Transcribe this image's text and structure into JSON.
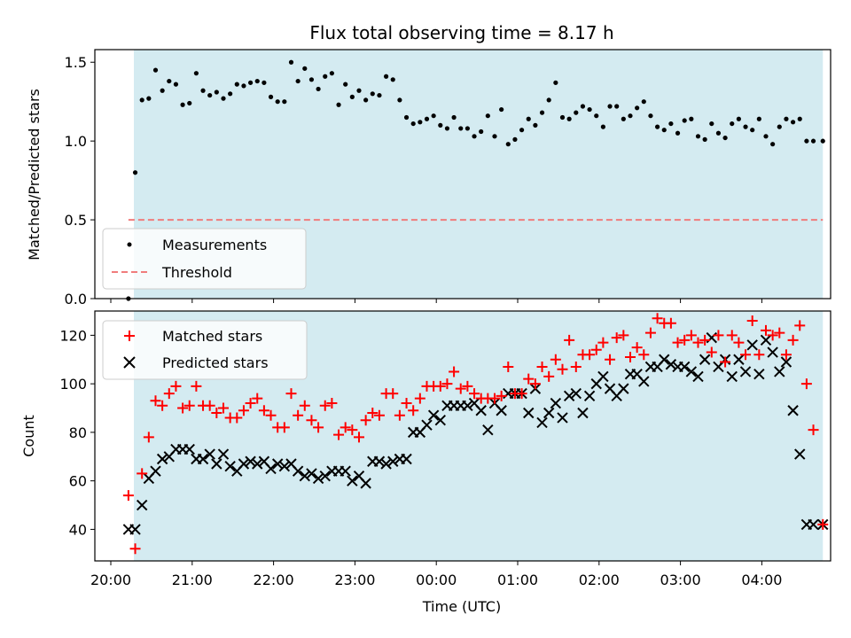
{
  "title": "Flux total observing time = 8.17 h",
  "chart_data": [
    {
      "type": "scatter",
      "name": "ratio-panel",
      "ylabel": "Matched/Predicted stars",
      "xlim": [
        "20:00",
        "04:50"
      ],
      "ylim": [
        0,
        1.58
      ],
      "yticks": [
        0,
        0.5,
        1.0,
        1.5
      ],
      "ytick_labels": [
        "0.0",
        "0.5",
        "1.0",
        "1.5"
      ],
      "observing_span": [
        "20:17",
        "04:45"
      ],
      "span_color": "#d4ebf1",
      "threshold": {
        "label": "Threshold",
        "value": 0.5,
        "color": "#f07c7c",
        "x": [
          "20:13",
          "04:45"
        ]
      },
      "legend": [
        "Measurements",
        "Threshold"
      ],
      "legend_loc": "lower left",
      "series": [
        {
          "name": "Measurements",
          "color": "#000000",
          "x": [
            "20:13",
            "20:18",
            "20:23",
            "20:28",
            "20:33",
            "20:38",
            "20:43",
            "20:48",
            "20:53",
            "20:58",
            "21:03",
            "21:08",
            "21:13",
            "21:18",
            "21:23",
            "21:28",
            "21:33",
            "21:38",
            "21:43",
            "21:48",
            "21:53",
            "21:58",
            "22:03",
            "22:08",
            "22:13",
            "22:18",
            "22:23",
            "22:28",
            "22:33",
            "22:38",
            "22:43",
            "22:48",
            "22:53",
            "22:58",
            "23:03",
            "23:08",
            "23:13",
            "23:18",
            "23:23",
            "23:28",
            "23:33",
            "23:38",
            "23:43",
            "23:48",
            "23:53",
            "23:58",
            "00:03",
            "00:08",
            "00:13",
            "00:18",
            "00:23",
            "00:28",
            "00:33",
            "00:38",
            "00:43",
            "00:48",
            "00:53",
            "00:58",
            "01:03",
            "01:08",
            "01:13",
            "01:18",
            "01:23",
            "01:28",
            "01:33",
            "01:38",
            "01:43",
            "01:48",
            "01:53",
            "01:58",
            "02:03",
            "02:08",
            "02:13",
            "02:18",
            "02:23",
            "02:28",
            "02:33",
            "02:38",
            "02:43",
            "02:48",
            "02:53",
            "02:58",
            "03:03",
            "03:08",
            "03:13",
            "03:18",
            "03:23",
            "03:28",
            "03:33",
            "03:38",
            "03:43",
            "03:48",
            "03:53",
            "03:58",
            "04:03",
            "04:08",
            "04:13",
            "04:18",
            "04:23",
            "04:28",
            "04:33",
            "04:38",
            "04:45"
          ],
          "y": [
            0.0,
            0.8,
            1.26,
            1.27,
            1.45,
            1.32,
            1.38,
            1.36,
            1.23,
            1.24,
            1.43,
            1.32,
            1.29,
            1.31,
            1.27,
            1.3,
            1.36,
            1.35,
            1.37,
            1.38,
            1.37,
            1.28,
            1.25,
            1.25,
            1.5,
            1.38,
            1.46,
            1.39,
            1.33,
            1.41,
            1.43,
            1.23,
            1.36,
            1.28,
            1.32,
            1.26,
            1.3,
            1.29,
            1.41,
            1.39,
            1.26,
            1.15,
            1.11,
            1.12,
            1.14,
            1.16,
            1.1,
            1.08,
            1.15,
            1.08,
            1.08,
            1.03,
            1.06,
            1.16,
            1.03,
            1.2,
            0.98,
            1.01,
            1.07,
            1.14,
            1.1,
            1.18,
            1.26,
            1.37,
            1.15,
            1.14,
            1.18,
            1.22,
            1.2,
            1.16,
            1.09,
            1.22,
            1.22,
            1.14,
            1.16,
            1.21,
            1.25,
            1.16,
            1.09,
            1.07,
            1.11,
            1.05,
            1.13,
            1.14,
            1.03,
            1.01,
            1.11,
            1.05,
            1.02,
            1.11,
            1.14,
            1.09,
            1.07,
            1.14,
            1.03,
            0.98,
            1.09,
            1.14,
            1.12,
            1.14,
            1.0,
            1.0,
            1.0
          ]
        }
      ]
    },
    {
      "type": "scatter",
      "name": "count-panel",
      "xlabel": "Time (UTC)",
      "ylabel": "Count",
      "xlim": [
        "20:00",
        "04:50"
      ],
      "xticks": [
        "20:00",
        "21:00",
        "22:00",
        "23:00",
        "00:00",
        "01:00",
        "02:00",
        "03:00",
        "04:00"
      ],
      "ylim": [
        27,
        130
      ],
      "yticks": [
        40,
        60,
        80,
        100,
        120
      ],
      "observing_span": [
        "20:17",
        "04:45"
      ],
      "span_color": "#d4ebf1",
      "legend": [
        "Matched stars",
        "Predicted stars"
      ],
      "legend_loc": "upper left",
      "series": [
        {
          "name": "Matched stars",
          "marker": "plus",
          "color": "#ff0000",
          "x": [
            "20:13",
            "20:18",
            "20:23",
            "20:28",
            "20:33",
            "20:38",
            "20:43",
            "20:48",
            "20:53",
            "20:58",
            "21:03",
            "21:08",
            "21:13",
            "21:18",
            "21:23",
            "21:28",
            "21:33",
            "21:38",
            "21:43",
            "21:48",
            "21:53",
            "21:58",
            "22:03",
            "22:08",
            "22:13",
            "22:18",
            "22:23",
            "22:28",
            "22:33",
            "22:38",
            "22:43",
            "22:48",
            "22:53",
            "22:58",
            "23:03",
            "23:08",
            "23:13",
            "23:18",
            "23:23",
            "23:28",
            "23:33",
            "23:38",
            "23:43",
            "23:48",
            "23:53",
            "23:58",
            "00:03",
            "00:08",
            "00:13",
            "00:18",
            "00:23",
            "00:28",
            "00:33",
            "00:38",
            "00:43",
            "00:48",
            "00:53",
            "00:58",
            "01:03",
            "01:08",
            "01:13",
            "01:18",
            "01:23",
            "01:28",
            "01:33",
            "01:38",
            "01:43",
            "01:48",
            "01:53",
            "01:58",
            "02:03",
            "02:08",
            "02:13",
            "02:18",
            "02:23",
            "02:28",
            "02:33",
            "02:38",
            "02:43",
            "02:48",
            "02:53",
            "02:58",
            "03:03",
            "03:08",
            "03:13",
            "03:18",
            "03:23",
            "03:28",
            "03:33",
            "03:38",
            "03:43",
            "03:48",
            "03:53",
            "03:58",
            "04:03",
            "04:08",
            "04:13",
            "04:18",
            "04:23",
            "04:28",
            "04:33",
            "04:38",
            "04:45"
          ],
          "y": [
            54,
            32,
            63,
            78,
            93,
            91,
            96,
            99,
            90,
            91,
            99,
            91,
            91,
            88,
            90,
            86,
            86,
            89,
            92,
            94,
            89,
            87,
            82,
            82,
            96,
            87,
            91,
            85,
            82,
            91,
            92,
            79,
            82,
            81,
            78,
            85,
            88,
            87,
            96,
            96,
            87,
            92,
            89,
            94,
            99,
            99,
            99,
            100,
            105,
            98,
            99,
            96,
            94,
            94,
            94,
            95,
            107,
            96,
            96,
            102,
            100,
            107,
            103,
            110,
            106,
            118,
            107,
            112,
            112,
            114,
            117,
            110,
            119,
            120,
            111,
            115,
            112,
            121,
            127,
            125,
            125,
            117,
            118,
            120,
            117,
            118,
            113,
            120,
            109,
            120,
            117,
            112,
            126,
            112,
            122,
            120,
            121,
            112,
            118,
            124,
            100,
            81,
            42
          ]
        },
        {
          "name": "Predicted stars",
          "marker": "x",
          "color": "#000000",
          "x": [
            "20:13",
            "20:18",
            "20:23",
            "20:28",
            "20:33",
            "20:38",
            "20:43",
            "20:48",
            "20:53",
            "20:58",
            "21:03",
            "21:08",
            "21:13",
            "21:18",
            "21:23",
            "21:28",
            "21:33",
            "21:38",
            "21:43",
            "21:48",
            "21:53",
            "21:58",
            "22:03",
            "22:08",
            "22:13",
            "22:18",
            "22:23",
            "22:28",
            "22:33",
            "22:38",
            "22:43",
            "22:48",
            "22:53",
            "22:58",
            "23:03",
            "23:08",
            "23:13",
            "23:18",
            "23:23",
            "23:28",
            "23:33",
            "23:38",
            "23:43",
            "23:48",
            "23:53",
            "23:58",
            "00:03",
            "00:08",
            "00:13",
            "00:18",
            "00:23",
            "00:28",
            "00:33",
            "00:38",
            "00:43",
            "00:48",
            "00:53",
            "00:58",
            "01:03",
            "01:08",
            "01:13",
            "01:18",
            "01:23",
            "01:28",
            "01:33",
            "01:38",
            "01:43",
            "01:48",
            "01:53",
            "01:58",
            "02:03",
            "02:08",
            "02:13",
            "02:18",
            "02:23",
            "02:28",
            "02:33",
            "02:38",
            "02:43",
            "02:48",
            "02:53",
            "02:58",
            "03:03",
            "03:08",
            "03:13",
            "03:18",
            "03:23",
            "03:28",
            "03:33",
            "03:38",
            "03:43",
            "03:48",
            "03:53",
            "03:58",
            "04:03",
            "04:08",
            "04:13",
            "04:18",
            "04:23",
            "04:28",
            "04:33",
            "04:38",
            "04:45"
          ],
          "y": [
            40,
            40,
            50,
            61,
            64,
            69,
            70,
            73,
            73,
            73,
            69,
            69,
            71,
            67,
            71,
            66,
            64,
            67,
            68,
            67,
            68,
            65,
            67,
            66,
            67,
            64,
            62,
            63,
            61,
            62,
            64,
            64,
            64,
            60,
            62,
            59,
            68,
            68,
            67,
            68,
            69,
            69,
            80,
            80,
            83,
            87,
            85,
            91,
            91,
            91,
            91,
            92,
            89,
            81,
            92,
            89,
            96,
            96,
            96,
            88,
            98,
            84,
            88,
            92,
            86,
            95,
            96,
            88,
            95,
            100,
            103,
            98,
            95,
            98,
            104,
            104,
            101,
            107,
            107,
            110,
            108,
            107,
            107,
            105,
            103,
            110,
            119,
            107,
            110,
            103,
            110,
            105,
            116,
            104,
            118,
            113,
            105,
            109,
            89,
            71,
            42,
            42,
            42
          ]
        }
      ]
    }
  ]
}
